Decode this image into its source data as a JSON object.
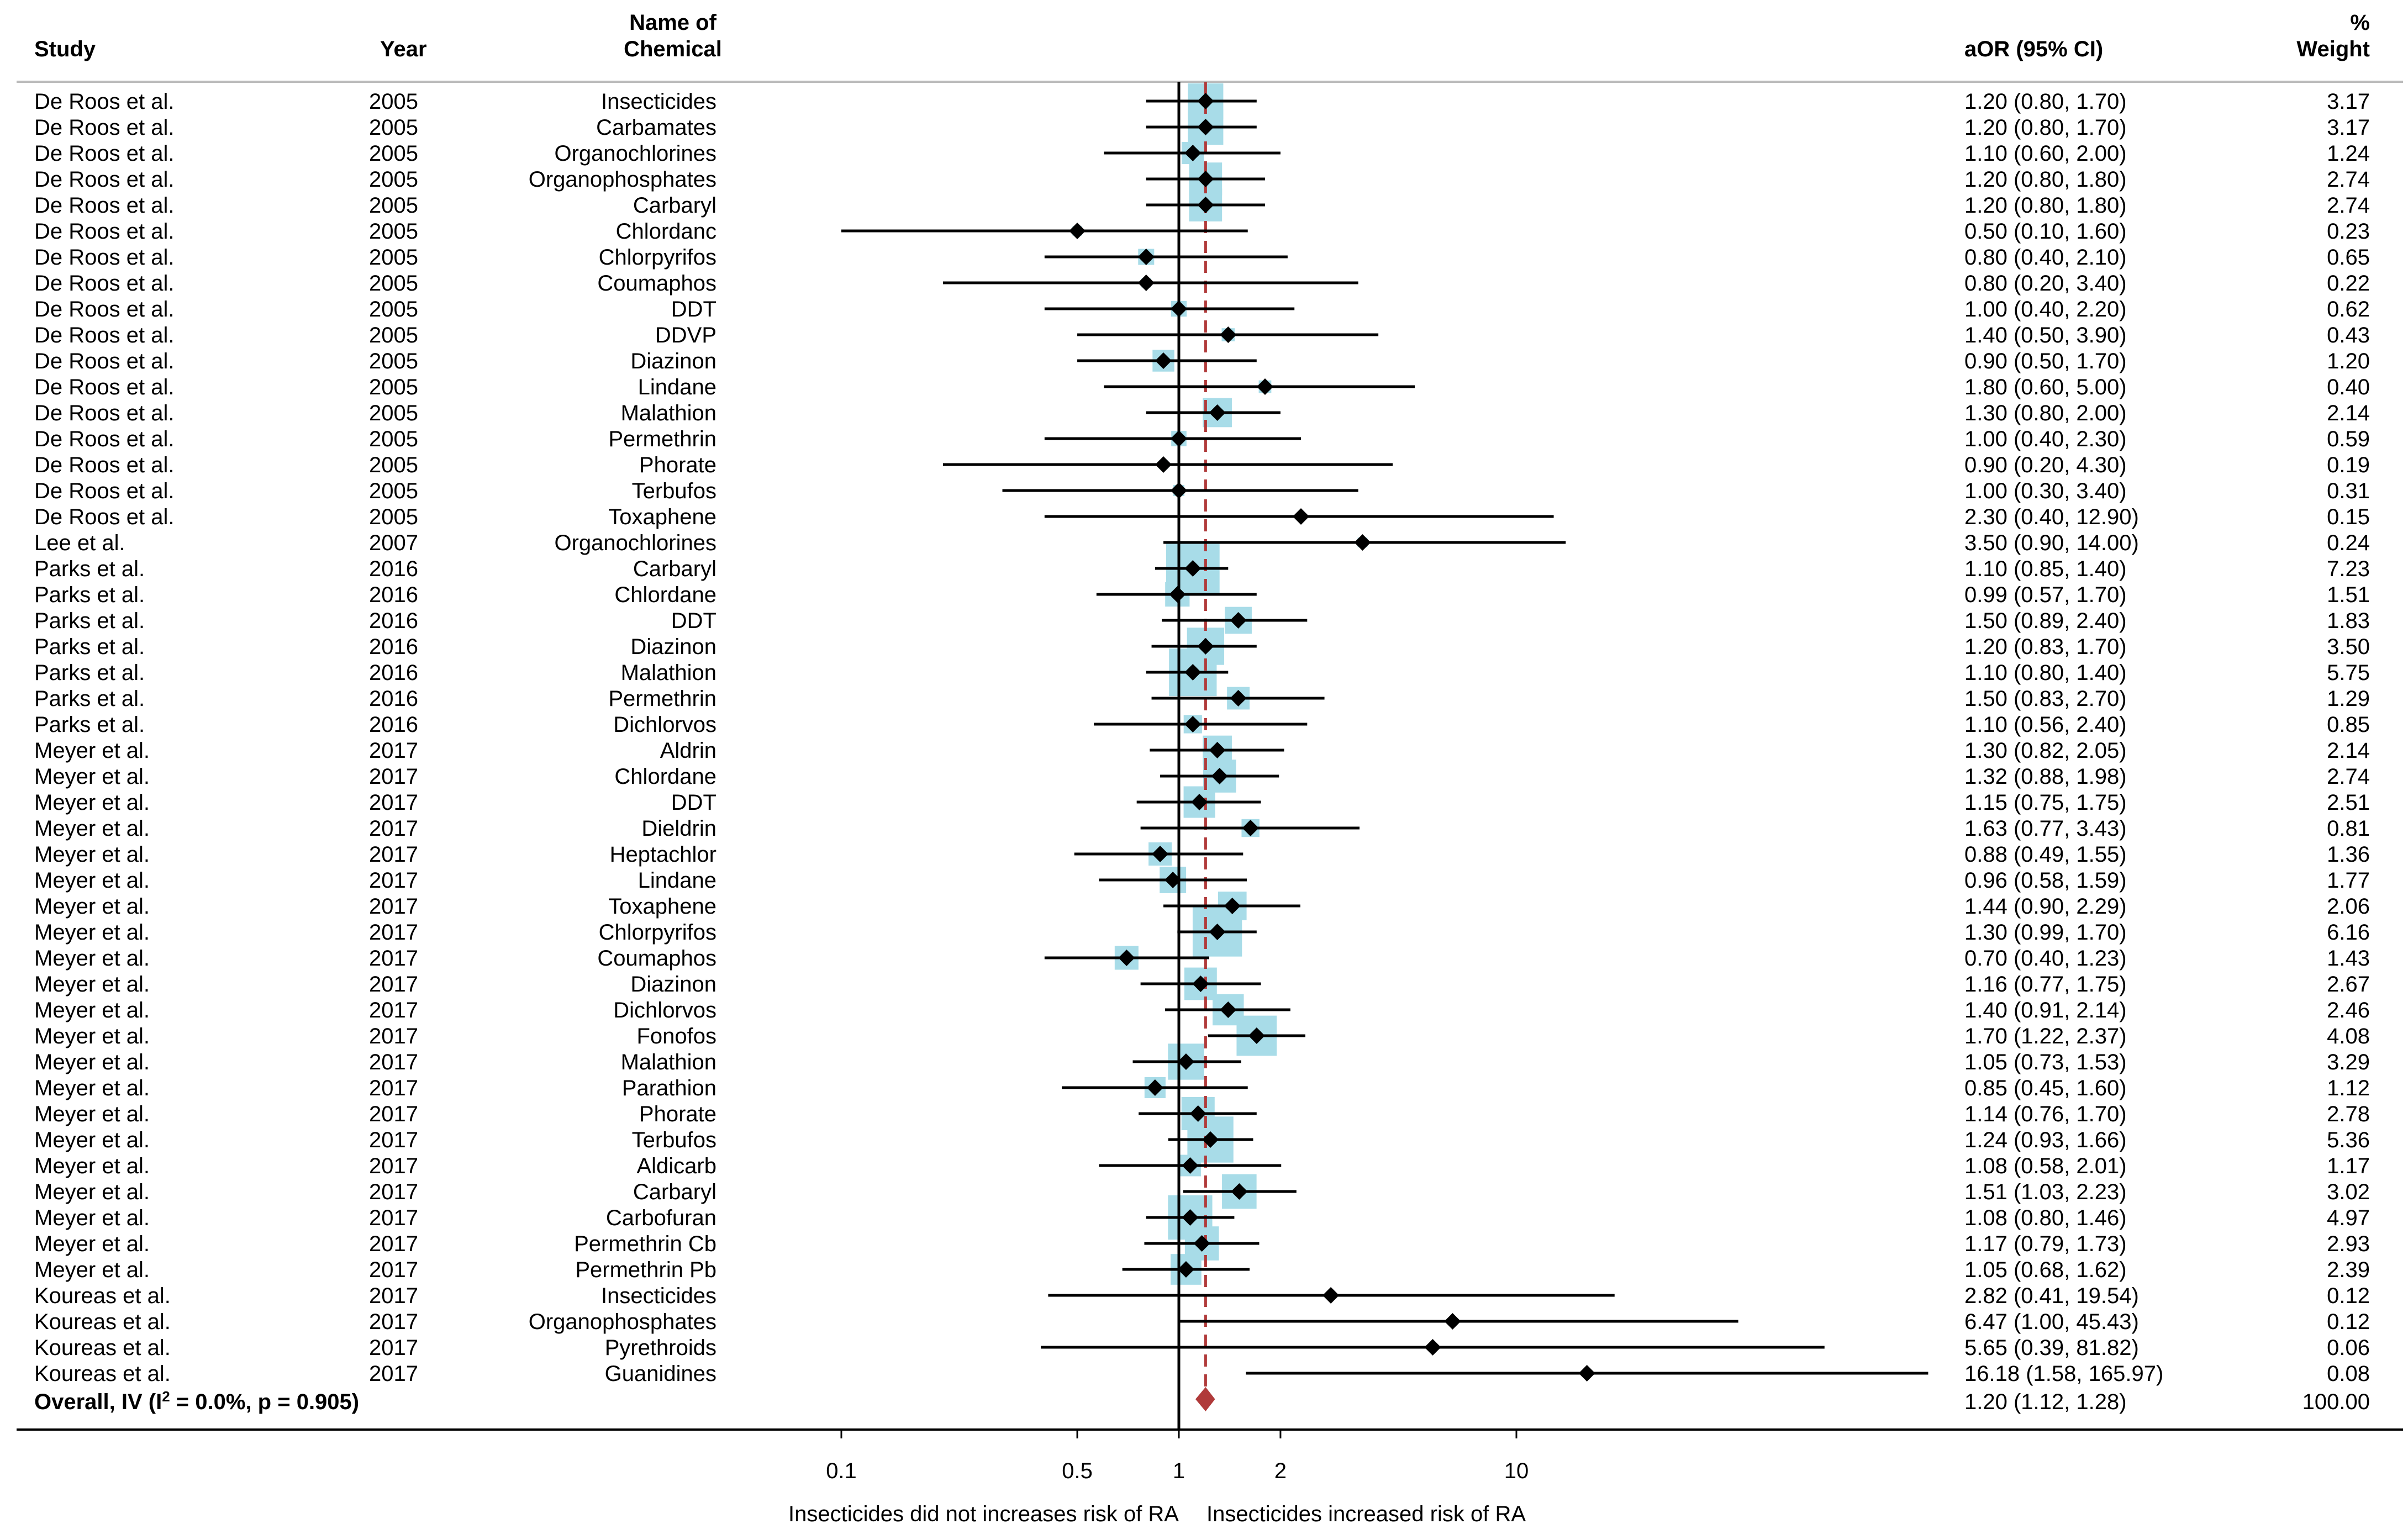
{
  "chart_data": {
    "type": "forest",
    "headers": {
      "study": "Study",
      "year": "Year",
      "chemical_line1": "Name of",
      "chemical_line2": "Chemical",
      "aor": "aOR (95% CI)",
      "weight_line1": "%",
      "weight_line2": "Weight"
    },
    "x_scale": "log",
    "xlim": [
      0.1,
      200
    ],
    "null_line": 1,
    "overall_line": 1.2,
    "x_ticks": [
      {
        "value": 0.1,
        "label": "0.1"
      },
      {
        "value": 0.5,
        "label": "0.5"
      },
      {
        "value": 1,
        "label": "1"
      },
      {
        "value": 2,
        "label": "2"
      },
      {
        "value": 10,
        "label": "10"
      }
    ],
    "xlabel_left": "Insecticides did not increases risk of RA",
    "xlabel_right": "Insecticides increased risk of RA",
    "studies": [
      {
        "study": "De Roos et al.",
        "year": "2005",
        "chemical": "Insecticides",
        "or": 1.2,
        "lo": 0.8,
        "hi": 1.7,
        "ci_text": "1.20 (0.80, 1.70)",
        "weight": 3.17,
        "weight_text": "3.17"
      },
      {
        "study": "De Roos et al.",
        "year": "2005",
        "chemical": "Carbamates",
        "or": 1.2,
        "lo": 0.8,
        "hi": 1.7,
        "ci_text": "1.20 (0.80, 1.70)",
        "weight": 3.17,
        "weight_text": "3.17"
      },
      {
        "study": "De Roos et al.",
        "year": "2005",
        "chemical": "Organochlorines",
        "or": 1.1,
        "lo": 0.6,
        "hi": 2.0,
        "ci_text": "1.10 (0.60, 2.00)",
        "weight": 1.24,
        "weight_text": "1.24"
      },
      {
        "study": "De Roos et al.",
        "year": "2005",
        "chemical": "Organophosphates",
        "or": 1.2,
        "lo": 0.8,
        "hi": 1.8,
        "ci_text": "1.20 (0.80, 1.80)",
        "weight": 2.74,
        "weight_text": "2.74"
      },
      {
        "study": "De Roos et al.",
        "year": "2005",
        "chemical": "Carbaryl",
        "or": 1.2,
        "lo": 0.8,
        "hi": 1.8,
        "ci_text": "1.20 (0.80, 1.80)",
        "weight": 2.74,
        "weight_text": "2.74"
      },
      {
        "study": "De Roos et al.",
        "year": "2005",
        "chemical": "Chlordanc",
        "or": 0.5,
        "lo": 0.1,
        "hi": 1.6,
        "ci_text": "0.50 (0.10, 1.60)",
        "weight": 0.23,
        "weight_text": "0.23"
      },
      {
        "study": "De Roos et al.",
        "year": "2005",
        "chemical": "Chlorpyrifos",
        "or": 0.8,
        "lo": 0.4,
        "hi": 2.1,
        "ci_text": "0.80 (0.40, 2.10)",
        "weight": 0.65,
        "weight_text": "0.65"
      },
      {
        "study": "De Roos et al.",
        "year": "2005",
        "chemical": "Coumaphos",
        "or": 0.8,
        "lo": 0.2,
        "hi": 3.4,
        "ci_text": "0.80 (0.20, 3.40)",
        "weight": 0.22,
        "weight_text": "0.22"
      },
      {
        "study": "De Roos et al.",
        "year": "2005",
        "chemical": "DDT",
        "or": 1.0,
        "lo": 0.4,
        "hi": 2.2,
        "ci_text": "1.00 (0.40, 2.20)",
        "weight": 0.62,
        "weight_text": "0.62"
      },
      {
        "study": "De Roos et al.",
        "year": "2005",
        "chemical": "DDVP",
        "or": 1.4,
        "lo": 0.5,
        "hi": 3.9,
        "ci_text": "1.40 (0.50, 3.90)",
        "weight": 0.43,
        "weight_text": "0.43"
      },
      {
        "study": "De Roos et al.",
        "year": "2005",
        "chemical": "Diazinon",
        "or": 0.9,
        "lo": 0.5,
        "hi": 1.7,
        "ci_text": "0.90 (0.50, 1.70)",
        "weight": 1.2,
        "weight_text": "1.20"
      },
      {
        "study": "De Roos et al.",
        "year": "2005",
        "chemical": "Lindane",
        "or": 1.8,
        "lo": 0.6,
        "hi": 5.0,
        "ci_text": "1.80 (0.60, 5.00)",
        "weight": 0.4,
        "weight_text": "0.40"
      },
      {
        "study": "De Roos et al.",
        "year": "2005",
        "chemical": "Malathion",
        "or": 1.3,
        "lo": 0.8,
        "hi": 2.0,
        "ci_text": "1.30 (0.80, 2.00)",
        "weight": 2.14,
        "weight_text": "2.14"
      },
      {
        "study": "De Roos et al.",
        "year": "2005",
        "chemical": "Permethrin",
        "or": 1.0,
        "lo": 0.4,
        "hi": 2.3,
        "ci_text": "1.00 (0.40, 2.30)",
        "weight": 0.59,
        "weight_text": "0.59"
      },
      {
        "study": "De Roos et al.",
        "year": "2005",
        "chemical": "Phorate",
        "or": 0.9,
        "lo": 0.2,
        "hi": 4.3,
        "ci_text": "0.90 (0.20, 4.30)",
        "weight": 0.19,
        "weight_text": "0.19"
      },
      {
        "study": "De Roos et al.",
        "year": "2005",
        "chemical": "Terbufos",
        "or": 1.0,
        "lo": 0.3,
        "hi": 3.4,
        "ci_text": "1.00 (0.30, 3.40)",
        "weight": 0.31,
        "weight_text": "0.31"
      },
      {
        "study": "De Roos et al.",
        "year": "2005",
        "chemical": "Toxaphene",
        "or": 2.3,
        "lo": 0.4,
        "hi": 12.9,
        "ci_text": "2.30 (0.40, 12.90)",
        "weight": 0.15,
        "weight_text": "0.15"
      },
      {
        "study": "Lee et al.",
        "year": "2007",
        "chemical": "Organochlorines",
        "or": 3.5,
        "lo": 0.9,
        "hi": 14.0,
        "ci_text": "3.50 (0.90, 14.00)",
        "weight": 0.24,
        "weight_text": "0.24"
      },
      {
        "study": "Parks et al.",
        "year": "2016",
        "chemical": "Carbaryl",
        "or": 1.1,
        "lo": 0.85,
        "hi": 1.4,
        "ci_text": "1.10 (0.85, 1.40)",
        "weight": 7.23,
        "weight_text": "7.23"
      },
      {
        "study": "Parks et al.",
        "year": "2016",
        "chemical": "Chlordane",
        "or": 0.99,
        "lo": 0.57,
        "hi": 1.7,
        "ci_text": "0.99 (0.57, 1.70)",
        "weight": 1.51,
        "weight_text": "1.51"
      },
      {
        "study": "Parks et al.",
        "year": "2016",
        "chemical": "DDT",
        "or": 1.5,
        "lo": 0.89,
        "hi": 2.4,
        "ci_text": "1.50 (0.89, 2.40)",
        "weight": 1.83,
        "weight_text": "1.83"
      },
      {
        "study": "Parks et al.",
        "year": "2016",
        "chemical": "Diazinon",
        "or": 1.2,
        "lo": 0.83,
        "hi": 1.7,
        "ci_text": "1.20 (0.83, 1.70)",
        "weight": 3.5,
        "weight_text": "3.50"
      },
      {
        "study": "Parks et al.",
        "year": "2016",
        "chemical": "Malathion",
        "or": 1.1,
        "lo": 0.8,
        "hi": 1.4,
        "ci_text": "1.10 (0.80, 1.40)",
        "weight": 5.75,
        "weight_text": "5.75"
      },
      {
        "study": "Parks et al.",
        "year": "2016",
        "chemical": "Permethrin",
        "or": 1.5,
        "lo": 0.83,
        "hi": 2.7,
        "ci_text": "1.50 (0.83, 2.70)",
        "weight": 1.29,
        "weight_text": "1.29"
      },
      {
        "study": "Parks et al.",
        "year": "2016",
        "chemical": "Dichlorvos",
        "or": 1.1,
        "lo": 0.56,
        "hi": 2.4,
        "ci_text": "1.10 (0.56, 2.40)",
        "weight": 0.85,
        "weight_text": "0.85"
      },
      {
        "study": "Meyer et al.",
        "year": "2017",
        "chemical": "Aldrin",
        "or": 1.3,
        "lo": 0.82,
        "hi": 2.05,
        "ci_text": "1.30 (0.82, 2.05)",
        "weight": 2.14,
        "weight_text": "2.14"
      },
      {
        "study": "Meyer et al.",
        "year": "2017",
        "chemical": "Chlordane",
        "or": 1.32,
        "lo": 0.88,
        "hi": 1.98,
        "ci_text": "1.32 (0.88, 1.98)",
        "weight": 2.74,
        "weight_text": "2.74"
      },
      {
        "study": "Meyer et al.",
        "year": "2017",
        "chemical": "DDT",
        "or": 1.15,
        "lo": 0.75,
        "hi": 1.75,
        "ci_text": "1.15 (0.75, 1.75)",
        "weight": 2.51,
        "weight_text": "2.51"
      },
      {
        "study": "Meyer et al.",
        "year": "2017",
        "chemical": "Dieldrin",
        "or": 1.63,
        "lo": 0.77,
        "hi": 3.43,
        "ci_text": "1.63 (0.77, 3.43)",
        "weight": 0.81,
        "weight_text": "0.81"
      },
      {
        "study": "Meyer et al.",
        "year": "2017",
        "chemical": "Heptachlor",
        "or": 0.88,
        "lo": 0.49,
        "hi": 1.55,
        "ci_text": "0.88 (0.49, 1.55)",
        "weight": 1.36,
        "weight_text": "1.36"
      },
      {
        "study": "Meyer et al.",
        "year": "2017",
        "chemical": "Lindane",
        "or": 0.96,
        "lo": 0.58,
        "hi": 1.59,
        "ci_text": "0.96 (0.58, 1.59)",
        "weight": 1.77,
        "weight_text": "1.77"
      },
      {
        "study": "Meyer et al.",
        "year": "2017",
        "chemical": "Toxaphene",
        "or": 1.44,
        "lo": 0.9,
        "hi": 2.29,
        "ci_text": "1.44 (0.90, 2.29)",
        "weight": 2.06,
        "weight_text": "2.06"
      },
      {
        "study": "Meyer et al.",
        "year": "2017",
        "chemical": "Chlorpyrifos",
        "or": 1.3,
        "lo": 0.99,
        "hi": 1.7,
        "ci_text": "1.30 (0.99, 1.70)",
        "weight": 6.16,
        "weight_text": "6.16"
      },
      {
        "study": "Meyer et al.",
        "year": "2017",
        "chemical": "Coumaphos",
        "or": 0.7,
        "lo": 0.4,
        "hi": 1.23,
        "ci_text": "0.70 (0.40, 1.23)",
        "weight": 1.43,
        "weight_text": "1.43"
      },
      {
        "study": "Meyer et al.",
        "year": "2017",
        "chemical": "Diazinon",
        "or": 1.16,
        "lo": 0.77,
        "hi": 1.75,
        "ci_text": "1.16 (0.77, 1.75)",
        "weight": 2.67,
        "weight_text": "2.67"
      },
      {
        "study": "Meyer et al.",
        "year": "2017",
        "chemical": "Dichlorvos",
        "or": 1.4,
        "lo": 0.91,
        "hi": 2.14,
        "ci_text": "1.40 (0.91, 2.14)",
        "weight": 2.46,
        "weight_text": "2.46"
      },
      {
        "study": "Meyer et al.",
        "year": "2017",
        "chemical": "Fonofos",
        "or": 1.7,
        "lo": 1.22,
        "hi": 2.37,
        "ci_text": "1.70 (1.22, 2.37)",
        "weight": 4.08,
        "weight_text": "4.08"
      },
      {
        "study": "Meyer et al.",
        "year": "2017",
        "chemical": "Malathion",
        "or": 1.05,
        "lo": 0.73,
        "hi": 1.53,
        "ci_text": "1.05 (0.73, 1.53)",
        "weight": 3.29,
        "weight_text": "3.29"
      },
      {
        "study": "Meyer et al.",
        "year": "2017",
        "chemical": "Parathion",
        "or": 0.85,
        "lo": 0.45,
        "hi": 1.6,
        "ci_text": "0.85 (0.45, 1.60)",
        "weight": 1.12,
        "weight_text": "1.12"
      },
      {
        "study": "Meyer et al.",
        "year": "2017",
        "chemical": "Phorate",
        "or": 1.14,
        "lo": 0.76,
        "hi": 1.7,
        "ci_text": "1.14 (0.76, 1.70)",
        "weight": 2.78,
        "weight_text": "2.78"
      },
      {
        "study": "Meyer et al.",
        "year": "2017",
        "chemical": "Terbufos",
        "or": 1.24,
        "lo": 0.93,
        "hi": 1.66,
        "ci_text": "1.24 (0.93, 1.66)",
        "weight": 5.36,
        "weight_text": "5.36"
      },
      {
        "study": "Meyer et al.",
        "year": "2017",
        "chemical": "Aldicarb",
        "or": 1.08,
        "lo": 0.58,
        "hi": 2.01,
        "ci_text": "1.08 (0.58, 2.01)",
        "weight": 1.17,
        "weight_text": "1.17"
      },
      {
        "study": "Meyer et al.",
        "year": "2017",
        "chemical": "Carbaryl",
        "or": 1.51,
        "lo": 1.03,
        "hi": 2.23,
        "ci_text": "1.51 (1.03, 2.23)",
        "weight": 3.02,
        "weight_text": "3.02"
      },
      {
        "study": "Meyer et al.",
        "year": "2017",
        "chemical": "Carbofuran",
        "or": 1.08,
        "lo": 0.8,
        "hi": 1.46,
        "ci_text": "1.08 (0.80, 1.46)",
        "weight": 4.97,
        "weight_text": "4.97"
      },
      {
        "study": "Meyer et al.",
        "year": "2017",
        "chemical": "Permethrin Cb",
        "or": 1.17,
        "lo": 0.79,
        "hi": 1.73,
        "ci_text": "1.17 (0.79, 1.73)",
        "weight": 2.93,
        "weight_text": "2.93"
      },
      {
        "study": "Meyer et al.",
        "year": "2017",
        "chemical": "Permethrin Pb",
        "or": 1.05,
        "lo": 0.68,
        "hi": 1.62,
        "ci_text": "1.05 (0.68, 1.62)",
        "weight": 2.39,
        "weight_text": "2.39"
      },
      {
        "study": "Koureas et al.",
        "year": "2017",
        "chemical": "Insecticides",
        "or": 2.82,
        "lo": 0.41,
        "hi": 19.54,
        "ci_text": "2.82 (0.41, 19.54)",
        "weight": 0.12,
        "weight_text": "0.12"
      },
      {
        "study": "Koureas et al.",
        "year": "2017",
        "chemical": "Organophosphates",
        "or": 6.47,
        "lo": 1.0,
        "hi": 45.43,
        "ci_text": "6.47 (1.00, 45.43)",
        "weight": 0.12,
        "weight_text": "0.12"
      },
      {
        "study": "Koureas et al.",
        "year": "2017",
        "chemical": "Pyrethroids",
        "or": 5.65,
        "lo": 0.39,
        "hi": 81.82,
        "ci_text": "5.65 (0.39, 81.82)",
        "weight": 0.06,
        "weight_text": "0.06"
      },
      {
        "study": "Koureas et al.",
        "year": "2017",
        "chemical": "Guanidines",
        "or": 16.18,
        "lo": 1.58,
        "hi": 165.97,
        "ci_text": "16.18 (1.58, 165.97)",
        "weight": 0.08,
        "weight_text": "0.08"
      }
    ],
    "overall": {
      "label": "Overall, IV (I",
      "label_sup": "2",
      "label_tail": " = 0.0%, p = 0.905)",
      "or": 1.2,
      "lo": 1.12,
      "hi": 1.28,
      "ci_text": "1.20 (1.12, 1.28)",
      "weight_text": "100.00"
    },
    "colors": {
      "weight_box": "#a8dce8",
      "point": "#000000",
      "overall_diamond": "#b03a3a",
      "overall_line": "#b03a3a",
      "axis": "#000000",
      "header_rule": "#bbbbbb"
    }
  }
}
